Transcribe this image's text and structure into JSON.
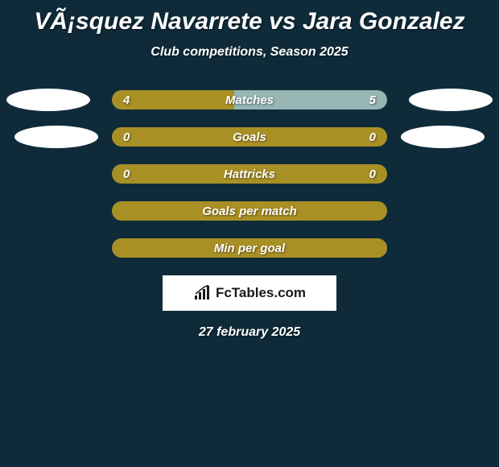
{
  "title": "VÃ¡squez Navarrete vs Jara Gonzalez",
  "subtitle": "Club competitions, Season 2025",
  "date": "27 february 2025",
  "logo_text": "FcTables.com",
  "colors": {
    "background": "#0f2b3a",
    "bar_brown": "#a99024",
    "bar_teal": "#96b5b3",
    "text": "#ffffff",
    "ellipse": "#ffffff"
  },
  "stats": [
    {
      "label": "Matches",
      "left_value": "4",
      "right_value": "5",
      "left_fill_pct": 44.4,
      "right_fill_pct": 55.6,
      "left_color": "#a99024",
      "right_color": "#96b5b3",
      "show_ellipses": true,
      "ellipse_class": "1"
    },
    {
      "label": "Goals",
      "left_value": "0",
      "right_value": "0",
      "left_fill_pct": 100,
      "right_fill_pct": 0,
      "left_color": "#a99024",
      "right_color": "#96b5b3",
      "show_ellipses": true,
      "ellipse_class": "2"
    },
    {
      "label": "Hattricks",
      "left_value": "0",
      "right_value": "0",
      "left_fill_pct": 100,
      "right_fill_pct": 0,
      "left_color": "#a99024",
      "right_color": "#96b5b3",
      "show_ellipses": false
    },
    {
      "label": "Goals per match",
      "left_value": "",
      "right_value": "",
      "left_fill_pct": 100,
      "right_fill_pct": 0,
      "left_color": "#a99024",
      "right_color": "#96b5b3",
      "show_ellipses": false
    },
    {
      "label": "Min per goal",
      "left_value": "",
      "right_value": "",
      "left_fill_pct": 100,
      "right_fill_pct": 0,
      "left_color": "#a99024",
      "right_color": "#96b5b3",
      "show_ellipses": false
    }
  ]
}
